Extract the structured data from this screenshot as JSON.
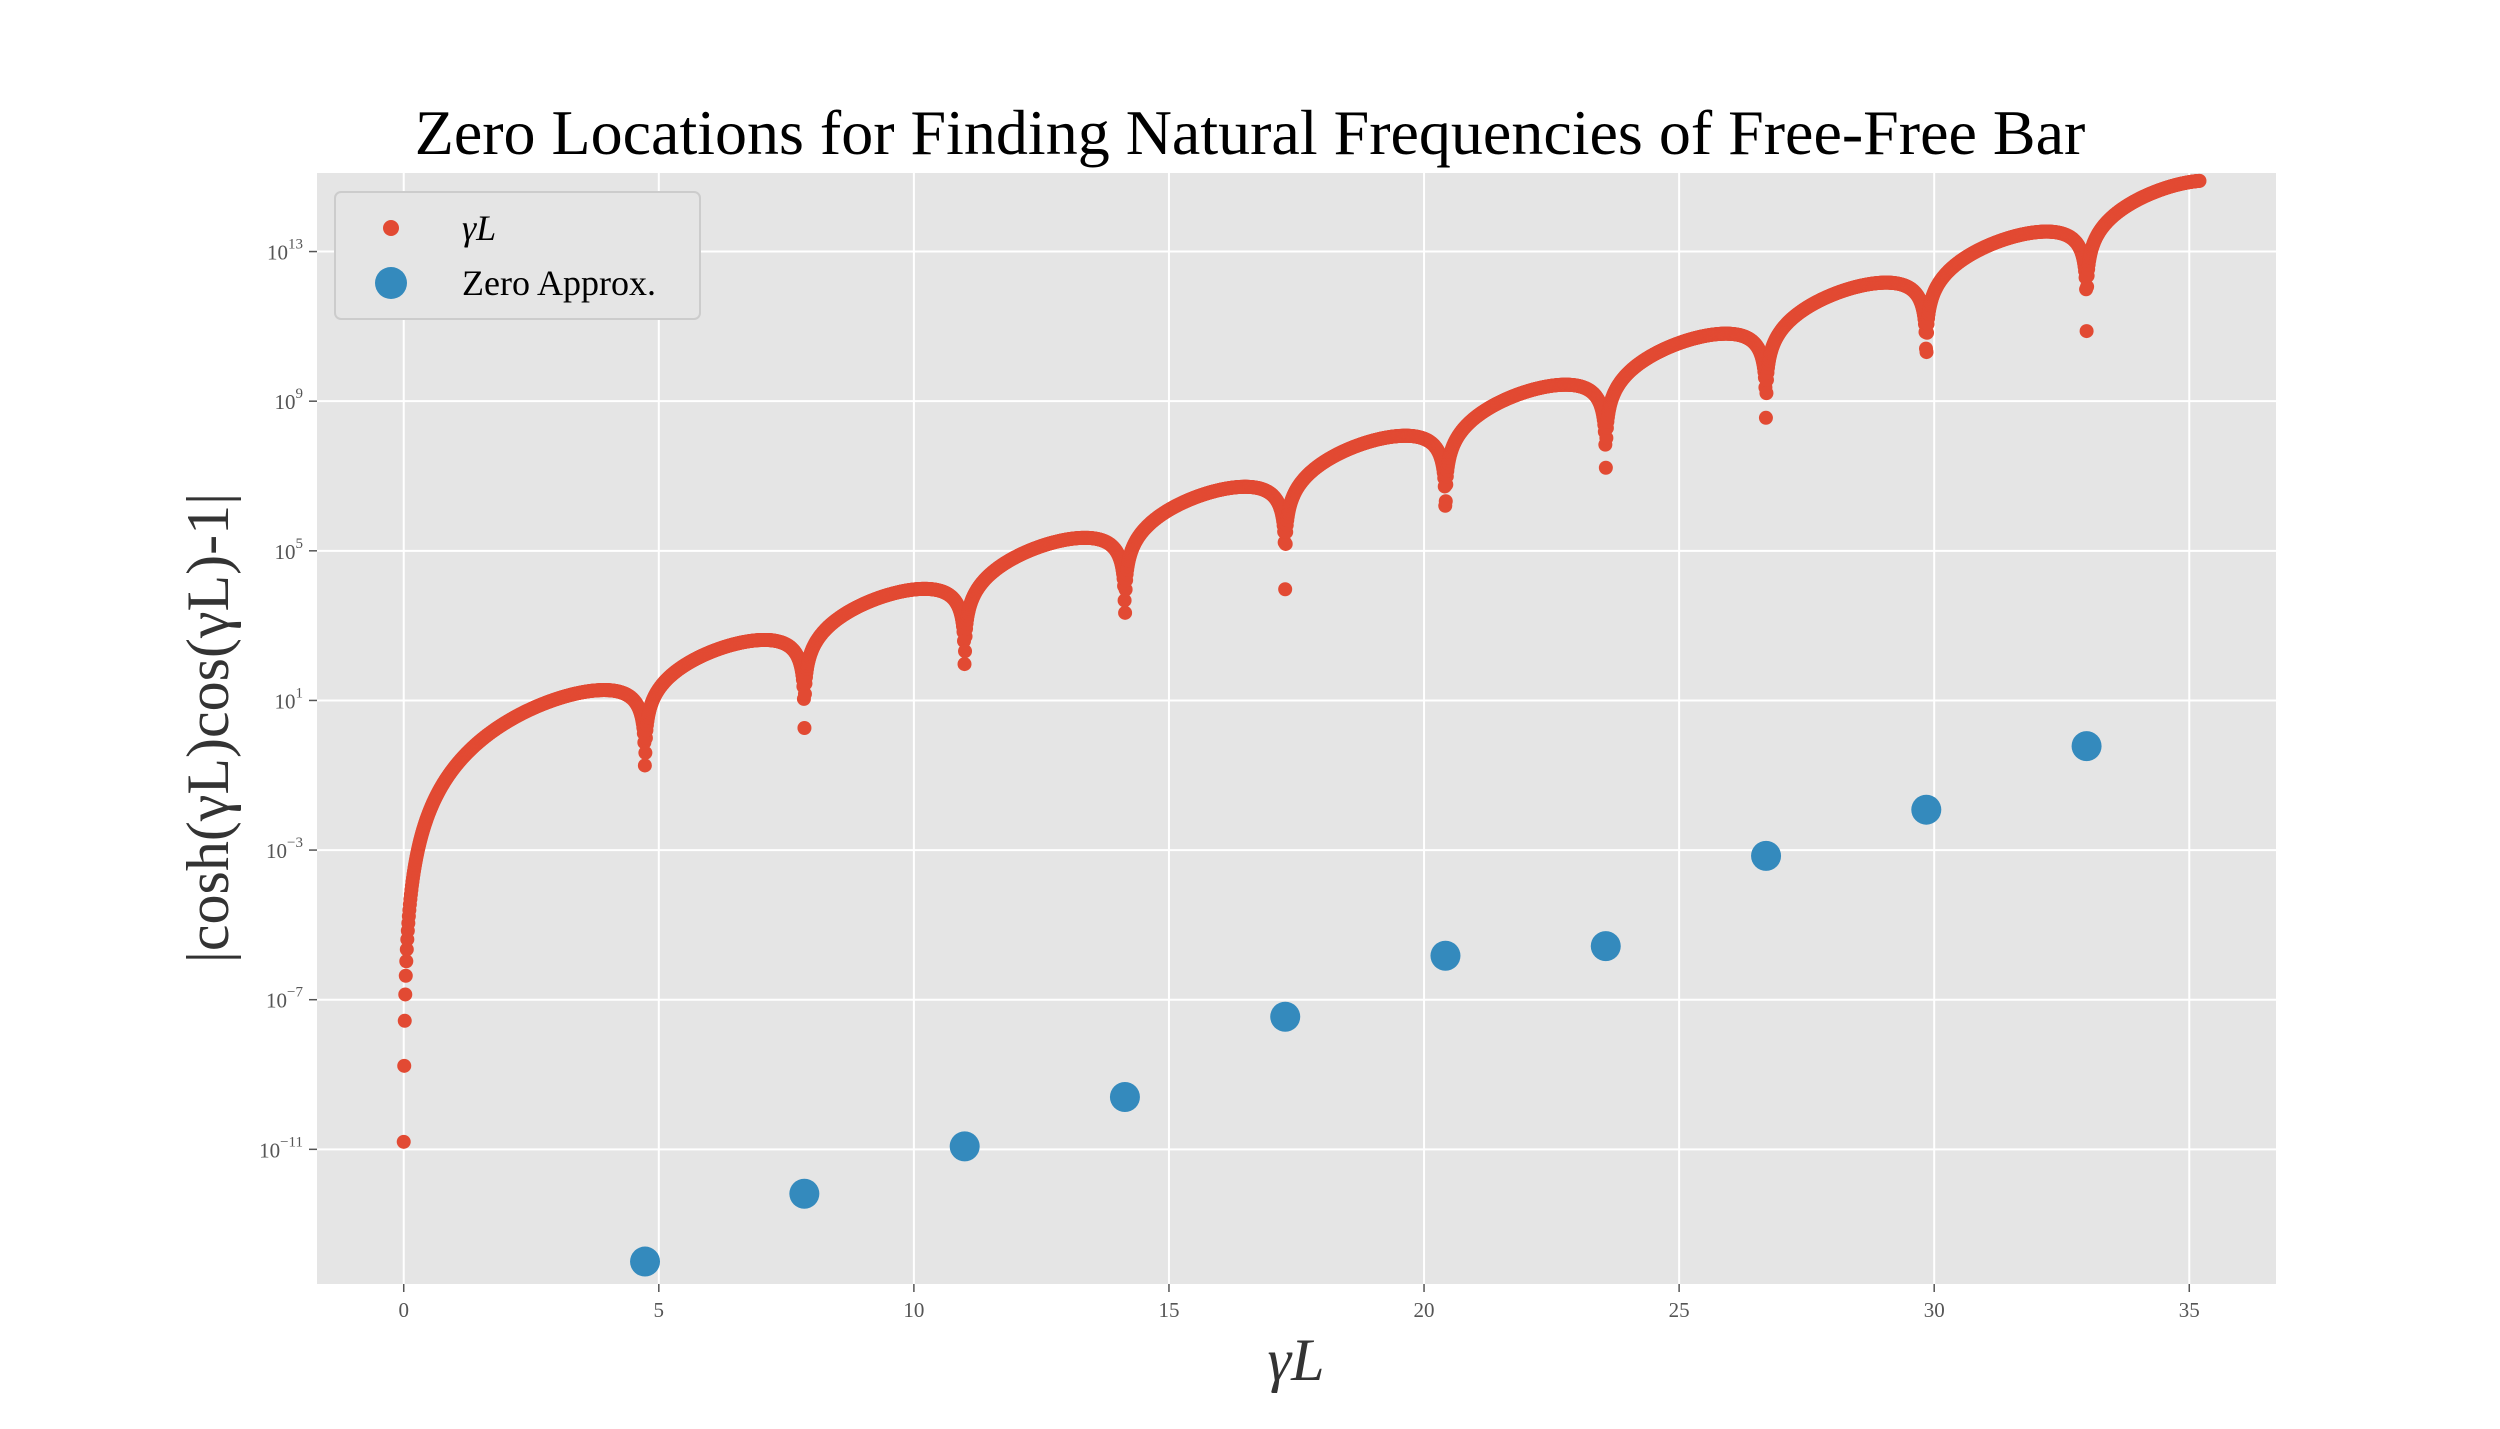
{
  "chart_data": {
    "type": "scatter",
    "title": "Zero Locations for Finding Natural Frequencies of Free-Free Bar",
    "xlabel": "γL",
    "ylabel": "|cosh(γL)cos(γL)-1|",
    "xlim": [
      -1.7,
      36.7
    ],
    "ylim_log10": [
      -14.6,
      15.1
    ],
    "yscale": "log",
    "grid": true,
    "legend_position": "top-left",
    "x_ticks": [
      0,
      5,
      10,
      15,
      20,
      25,
      30,
      35
    ],
    "x_tick_labels": [
      "0",
      "5",
      "10",
      "15",
      "20",
      "25",
      "30",
      "35"
    ],
    "y_ticks_log10": [
      -11,
      -7,
      -3,
      1,
      5,
      9,
      13
    ],
    "y_tick_labels": [
      {
        "base": "10",
        "exp": "−11"
      },
      {
        "base": "10",
        "exp": "−7"
      },
      {
        "base": "10",
        "exp": "−3"
      },
      {
        "base": "10",
        "exp": "1"
      },
      {
        "base": "10",
        "exp": "5"
      },
      {
        "base": "10",
        "exp": "9"
      },
      {
        "base": "10",
        "exp": "13"
      }
    ],
    "series": [
      {
        "name": "γL",
        "color": "#e24a33",
        "marker": "small-circle",
        "x_range": [
          0,
          35.2
        ],
        "expression": "|cosh(x)cos(x)-1|"
      },
      {
        "name": "Zero Approx.",
        "color": "#348abd",
        "marker": "large-circle",
        "points": [
          {
            "x": 4.73,
            "y": 1e-14
          },
          {
            "x": 7.853,
            "y": 6.5e-13
          },
          {
            "x": 10.996,
            "y": 1.2e-11
          },
          {
            "x": 14.137,
            "y": 2.5e-10
          },
          {
            "x": 17.279,
            "y": 3.5e-08
          },
          {
            "x": 20.42,
            "y": 1.5e-06
          },
          {
            "x": 23.562,
            "y": 2.7e-06
          },
          {
            "x": 26.704,
            "y": 0.0007
          },
          {
            "x": 29.845,
            "y": 0.012
          },
          {
            "x": 32.987,
            "y": 0.6
          }
        ]
      }
    ]
  }
}
